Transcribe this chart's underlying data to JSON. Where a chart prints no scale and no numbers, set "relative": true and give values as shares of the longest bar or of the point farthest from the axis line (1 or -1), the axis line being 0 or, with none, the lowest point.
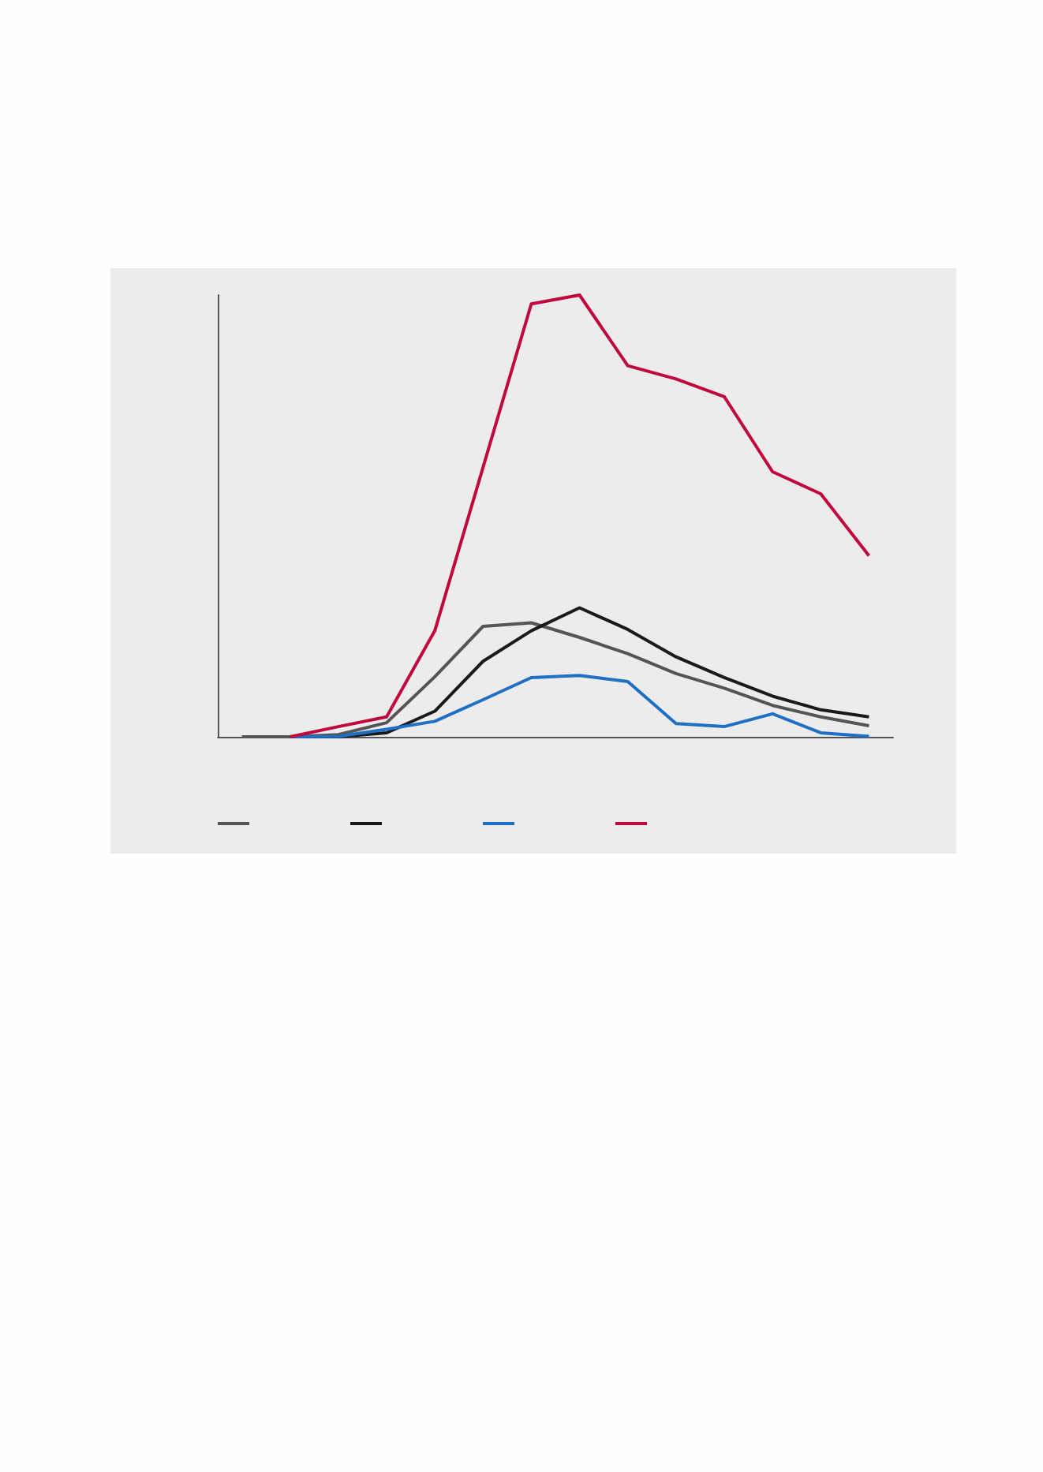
{
  "chart_data": {
    "type": "line",
    "relative": true,
    "categories": [
      null,
      null,
      null,
      null,
      null,
      null,
      null,
      null,
      null,
      null,
      null,
      null,
      null,
      null
    ],
    "series": [
      {
        "color": "#555555",
        "values": [
          0,
          0,
          0.005,
          0.032,
          0.136,
          0.25,
          0.258,
          0.225,
          0.188,
          0.143,
          0.11,
          0.071,
          0.045,
          0.025
        ]
      },
      {
        "color": "#1a1a1a",
        "values": [
          null,
          0,
          0,
          0.009,
          0.058,
          0.171,
          0.24,
          0.292,
          0.243,
          0.181,
          0.134,
          0.092,
          0.061,
          0.045
        ]
      },
      {
        "color": "#1f6fc5",
        "values": [
          null,
          0,
          0.001,
          0.017,
          0.035,
          0.084,
          0.134,
          0.139,
          0.125,
          0.03,
          0.023,
          0.052,
          0.009,
          0.001
        ]
      },
      {
        "color": "#c0083c",
        "values": [
          null,
          0,
          0.023,
          0.045,
          0.24,
          0.61,
          0.98,
          1,
          0.84,
          0.81,
          0.77,
          0.6,
          0.55,
          0.41
        ]
      }
    ],
    "grid": false,
    "marker": "none",
    "line_style": "solid"
  }
}
